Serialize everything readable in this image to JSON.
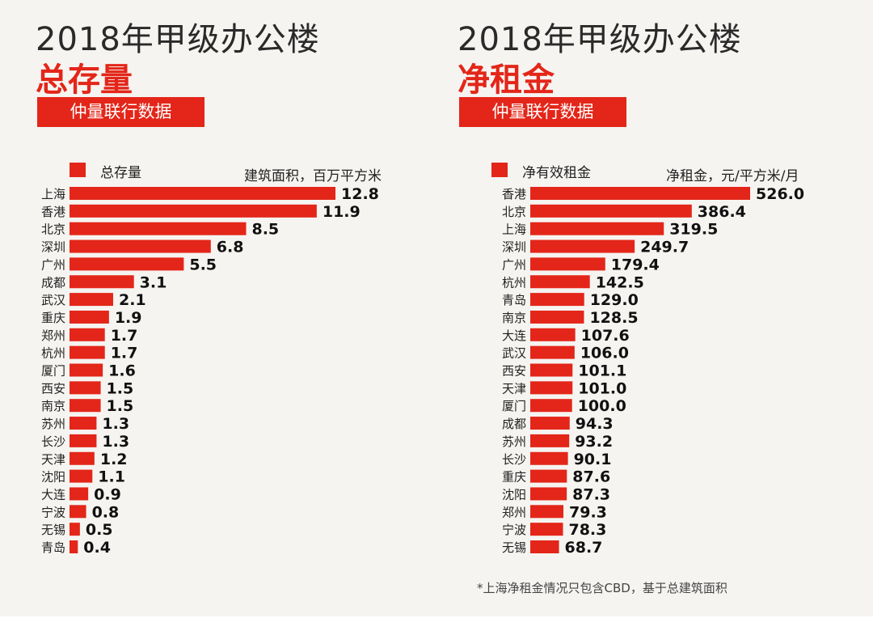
{
  "colors": {
    "bar": "#e32619",
    "accent": "#e32619",
    "title": "#2a2a2a",
    "background": "#f6f4f1"
  },
  "footnote": "*上海净租金情况只包含CBD，基于总建筑面积",
  "chart_data": [
    {
      "type": "bar",
      "orientation": "horizontal",
      "title": "2018年甲级办公楼",
      "subtitle": "总存量",
      "source": "仲量联行数据",
      "legend": "总存量",
      "unit": "建筑面积，百万平方米",
      "categories": [
        "上海",
        "香港",
        "北京",
        "深圳",
        "广州",
        "成都",
        "武汉",
        "重庆",
        "郑州",
        "杭州",
        "厦门",
        "西安",
        "南京",
        "苏州",
        "长沙",
        "天津",
        "沈阳",
        "大连",
        "宁波",
        "无锡",
        "青岛"
      ],
      "values": [
        12.8,
        11.9,
        8.5,
        6.8,
        5.5,
        3.1,
        2.1,
        1.9,
        1.7,
        1.7,
        1.6,
        1.5,
        1.5,
        1.3,
        1.3,
        1.2,
        1.1,
        0.9,
        0.8,
        0.5,
        0.4
      ],
      "value_labels": [
        "12.8",
        "11.9",
        "8.5",
        "6.8",
        "5.5",
        "3.1",
        "2.1",
        "1.9",
        "1.7",
        "1.7",
        "1.6",
        "1.5",
        "1.5",
        "1.3",
        "1.3",
        "1.2",
        "1.1",
        "0.9",
        "0.8",
        "0.5",
        "0.4"
      ],
      "xlim": [
        0,
        12.8
      ],
      "grid": false,
      "legend_position": "top-left"
    },
    {
      "type": "bar",
      "orientation": "horizontal",
      "title": "2018年甲级办公楼",
      "subtitle": "净租金",
      "source": "仲量联行数据",
      "legend": "净有效租金",
      "unit": "净租金，元/平方米/月",
      "categories": [
        "香港",
        "北京",
        "上海",
        "深圳",
        "广州",
        "杭州",
        "青岛",
        "南京",
        "大连",
        "武汉",
        "西安",
        "天津",
        "厦门",
        "成都",
        "苏州",
        "长沙",
        "重庆",
        "沈阳",
        "郑州",
        "宁波",
        "无锡"
      ],
      "values": [
        526.0,
        386.4,
        319.5,
        249.7,
        179.4,
        142.5,
        129.0,
        128.5,
        107.6,
        106.0,
        101.1,
        101.0,
        100.0,
        94.3,
        93.2,
        90.1,
        87.6,
        87.3,
        79.3,
        78.3,
        68.7
      ],
      "value_labels": [
        "526.0",
        "386.4",
        "319.5",
        "249.7",
        "179.4",
        "142.5",
        "129.0",
        "128.5",
        "107.6",
        "106.0",
        "101.1",
        "101.0",
        "100.0",
        "94.3",
        "93.2",
        "90.1",
        "87.6",
        "87.3",
        "79.3",
        "78.3",
        "68.7"
      ],
      "xlim": [
        0,
        526.0
      ],
      "grid": false,
      "legend_position": "top-left"
    }
  ]
}
